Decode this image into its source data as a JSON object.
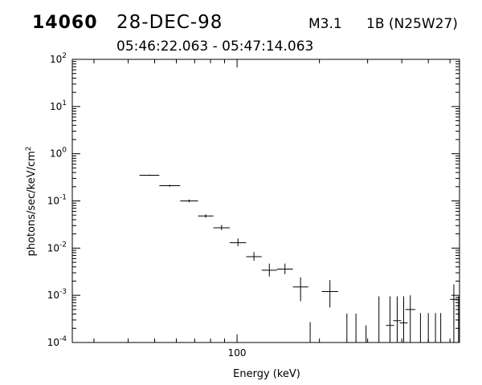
{
  "header": {
    "event_id": "14060",
    "date": "28-DEC-98",
    "flare_class": "M3.1",
    "optical_class": "1B (N25W27)",
    "time_range": "05:46:22.063 - 05:47:14.063"
  },
  "chart_data": {
    "type": "scatter",
    "title": "",
    "xlabel": "Energy (keV)",
    "ylabel": "photons/sec/keV/cm²",
    "xscale": "log",
    "yscale": "log",
    "xlim": [
      25,
      650
    ],
    "ylim": [
      0.0001,
      100
    ],
    "x_tick_labels": [
      {
        "value": 100,
        "label": "100"
      }
    ],
    "y_tick_labels": [
      {
        "value": 100,
        "base": "10",
        "exp": "2"
      },
      {
        "value": 10,
        "base": "10",
        "exp": "1"
      },
      {
        "value": 1,
        "base": "10",
        "exp": "0"
      },
      {
        "value": 0.1,
        "base": "10",
        "exp": "-1"
      },
      {
        "value": 0.01,
        "base": "10",
        "exp": "-2"
      },
      {
        "value": 0.001,
        "base": "10",
        "exp": "-3"
      },
      {
        "value": 0.0001,
        "base": "10",
        "exp": "-4"
      }
    ],
    "grid": false,
    "legend": "none",
    "series": [
      {
        "style": "error-bars",
        "points": [
          {
            "x_low": 44,
            "x_high": 52,
            "y": 0.35,
            "y_low": 0.34,
            "y_high": 0.36
          },
          {
            "x_low": 52,
            "x_high": 62,
            "y": 0.21,
            "y_low": 0.2,
            "y_high": 0.22
          },
          {
            "x_low": 62,
            "x_high": 72,
            "y": 0.1,
            "y_low": 0.094,
            "y_high": 0.107
          },
          {
            "x_low": 72,
            "x_high": 82,
            "y": 0.048,
            "y_low": 0.044,
            "y_high": 0.052
          },
          {
            "x_low": 82,
            "x_high": 94,
            "y": 0.027,
            "y_low": 0.024,
            "y_high": 0.031
          },
          {
            "x_low": 94,
            "x_high": 108,
            "y": 0.013,
            "y_low": 0.011,
            "y_high": 0.016
          },
          {
            "x_low": 108,
            "x_high": 123,
            "y": 0.0066,
            "y_low": 0.0054,
            "y_high": 0.0082
          },
          {
            "x_low": 123,
            "x_high": 140,
            "y": 0.0034,
            "y_low": 0.0025,
            "y_high": 0.0047
          },
          {
            "x_low": 140,
            "x_high": 160,
            "y": 0.0036,
            "y_low": 0.0028,
            "y_high": 0.0047
          },
          {
            "x_low": 160,
            "x_high": 182,
            "y": 0.0015,
            "y_low": 0.00075,
            "y_high": 0.0024
          },
          {
            "x_low": 204,
            "x_high": 234,
            "y": 0.0012,
            "y_low": 0.00055,
            "y_high": 0.0021
          },
          {
            "x_low": 350,
            "x_high": 375,
            "y": 0.00023,
            "y_low": 0.0001,
            "y_high": 0.00095
          },
          {
            "x_low": 372,
            "x_high": 398,
            "y": 0.00029,
            "y_low": 0.0001,
            "y_high": 0.00095
          },
          {
            "x_low": 393,
            "x_high": 420,
            "y": 0.00026,
            "y_low": 0.0001,
            "y_high": 0.00095
          },
          {
            "x_low": 412,
            "x_high": 448,
            "y": 0.0005,
            "y_low": 0.0001,
            "y_high": 0.001
          },
          {
            "x_low": 600,
            "x_high": 640,
            "y": 0.00082,
            "y_low": 0.0001,
            "y_high": 0.0017
          }
        ]
      },
      {
        "style": "upper-limit-bars",
        "points": [
          {
            "x": 185,
            "y_high": 0.00027
          },
          {
            "x": 252,
            "y_high": 0.00041
          },
          {
            "x": 272,
            "y_high": 0.00041
          },
          {
            "x": 296,
            "y_high": 0.00023
          },
          {
            "x": 330,
            "y_high": 0.00095
          },
          {
            "x": 468,
            "y_high": 0.00042
          },
          {
            "x": 500,
            "y_high": 0.00042
          },
          {
            "x": 531,
            "y_high": 0.00042
          },
          {
            "x": 555,
            "y_high": 0.00042
          },
          {
            "x": 645,
            "y_high": 0.00095
          }
        ]
      }
    ]
  }
}
